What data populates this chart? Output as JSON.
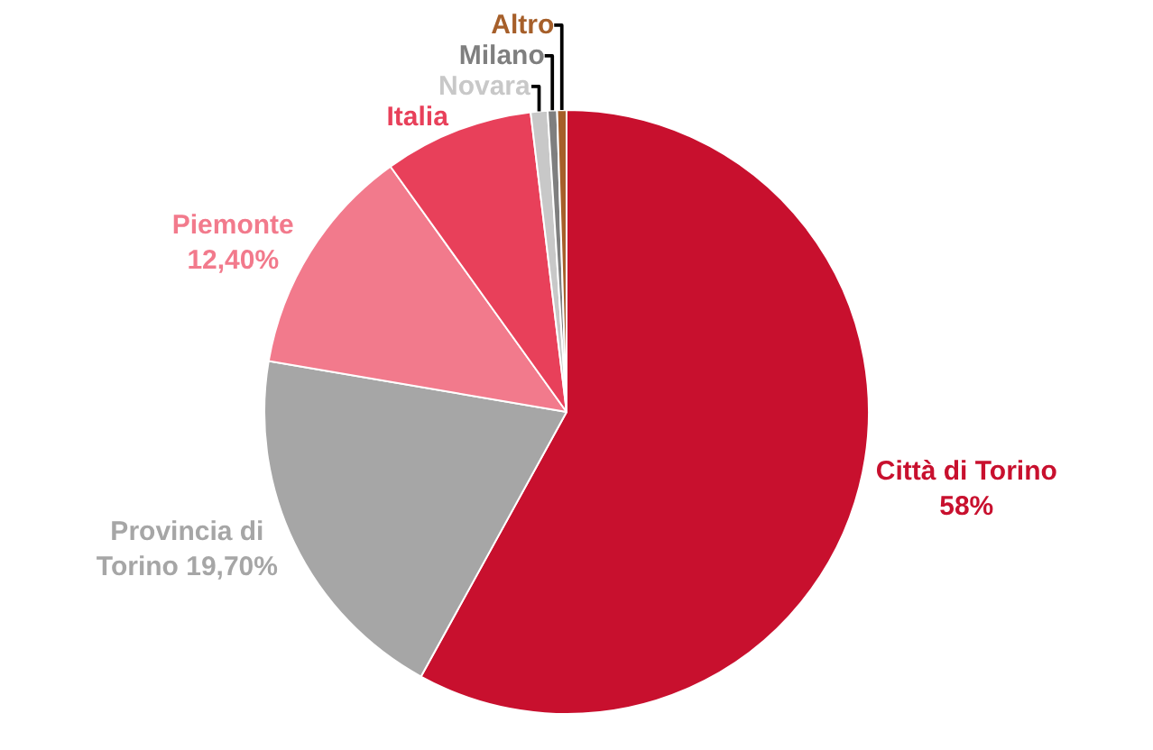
{
  "chart_data": {
    "type": "pie",
    "categories": [
      "Città di Torino",
      "Provincia di\nTorino",
      "Piemonte",
      "Italia",
      "Novara",
      "Milano",
      "Altro"
    ],
    "values": [
      58,
      19.7,
      12.4,
      8.0,
      0.9,
      0.5,
      0.5
    ],
    "value_labels": [
      "58%",
      "19,70%",
      "12,40%",
      null,
      null,
      null,
      null
    ],
    "colors": [
      "#c8102e",
      "#a6a6a6",
      "#f27a8c",
      "#e8405a",
      "#c8c8c8",
      "#7f7f7f",
      "#a65f2a"
    ],
    "legend": false
  }
}
